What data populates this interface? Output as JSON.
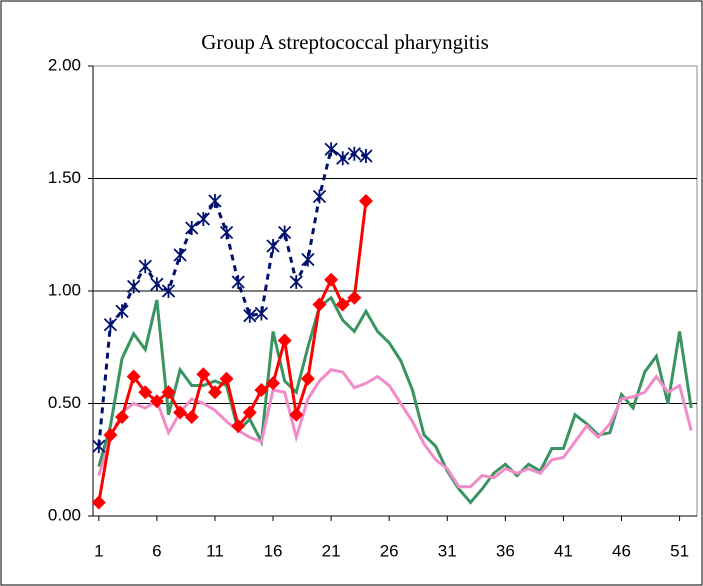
{
  "chart_data": {
    "type": "line",
    "title": "Group A streptococcal pharyngitis",
    "x": [
      1,
      2,
      3,
      4,
      5,
      6,
      7,
      8,
      9,
      10,
      11,
      12,
      13,
      14,
      15,
      16,
      17,
      18,
      19,
      20,
      21,
      22,
      23,
      24,
      25,
      26,
      27,
      28,
      29,
      30,
      31,
      32,
      33,
      34,
      35,
      36,
      37,
      38,
      39,
      40,
      41,
      42,
      43,
      44,
      45,
      46,
      47,
      48,
      49,
      50,
      51,
      52
    ],
    "xlim": [
      0.5,
      52.5
    ],
    "xticks": [
      1,
      6,
      11,
      16,
      21,
      26,
      31,
      36,
      41,
      46,
      51
    ],
    "ylim": [
      0,
      2
    ],
    "yticks": [
      {
        "value": 0,
        "label": "0.00"
      },
      {
        "value": 0.5,
        "label": "0.50"
      },
      {
        "value": 1,
        "label": "1.00"
      },
      {
        "value": 1.5,
        "label": "1.50"
      },
      {
        "value": 2,
        "label": "2.00"
      }
    ],
    "grid": true,
    "series": [
      {
        "color": "#3a9461",
        "marker": "none",
        "dash": false,
        "values": [
          0.22,
          0.4,
          0.7,
          0.81,
          0.74,
          0.96,
          0.45,
          0.65,
          0.58,
          0.58,
          0.6,
          0.58,
          0.38,
          0.43,
          0.33,
          0.82,
          0.6,
          0.55,
          0.75,
          0.93,
          0.97,
          0.87,
          0.82,
          0.91,
          0.82,
          0.77,
          0.69,
          0.56,
          0.36,
          0.31,
          0.2,
          0.12,
          0.06,
          0.12,
          0.19,
          0.23,
          0.18,
          0.23,
          0.2,
          0.3,
          0.3,
          0.45,
          0.41,
          0.36,
          0.37,
          0.54,
          0.48,
          0.64,
          0.71,
          0.5,
          0.82,
          0.48
        ]
      },
      {
        "color": "#f08cc8",
        "marker": "none",
        "dash": false,
        "values": [
          0.18,
          0.35,
          0.46,
          0.5,
          0.48,
          0.51,
          0.37,
          0.46,
          0.52,
          0.5,
          0.47,
          0.42,
          0.38,
          0.35,
          0.33,
          0.56,
          0.55,
          0.35,
          0.52,
          0.6,
          0.65,
          0.64,
          0.57,
          0.59,
          0.62,
          0.58,
          0.5,
          0.42,
          0.32,
          0.25,
          0.21,
          0.13,
          0.13,
          0.18,
          0.17,
          0.21,
          0.19,
          0.21,
          0.19,
          0.25,
          0.26,
          0.33,
          0.4,
          0.35,
          0.41,
          0.52,
          0.53,
          0.55,
          0.62,
          0.55,
          0.58,
          0.38
        ]
      },
      {
        "color": "#00106e",
        "marker": "asterisk",
        "dash": true,
        "values": [
          0.31,
          0.85,
          0.91,
          1.02,
          1.11,
          1.03,
          1.0,
          1.16,
          1.28,
          1.32,
          1.4,
          1.26,
          1.04,
          0.89,
          0.9,
          1.2,
          1.26,
          1.04,
          1.14,
          1.42,
          1.63,
          1.59,
          1.61,
          1.6,
          null,
          null,
          null,
          null,
          null,
          null,
          null,
          null,
          null,
          null,
          null,
          null,
          null,
          null,
          null,
          null,
          null,
          null,
          null,
          null,
          null,
          null,
          null,
          null,
          null,
          null,
          null,
          null
        ]
      },
      {
        "color": "#ff0000",
        "marker": "diamond",
        "dash": false,
        "values": [
          0.06,
          0.36,
          0.44,
          0.62,
          0.55,
          0.51,
          0.55,
          0.46,
          0.44,
          0.63,
          0.55,
          0.61,
          0.4,
          0.46,
          0.56,
          0.59,
          0.78,
          0.45,
          0.61,
          0.94,
          1.05,
          0.94,
          0.97,
          1.4,
          null,
          null,
          null,
          null,
          null,
          null,
          null,
          null,
          null,
          null,
          null,
          null,
          null,
          null,
          null,
          null,
          null,
          null,
          null,
          null,
          null,
          null,
          null,
          null,
          null,
          null,
          null,
          null
        ]
      }
    ]
  }
}
